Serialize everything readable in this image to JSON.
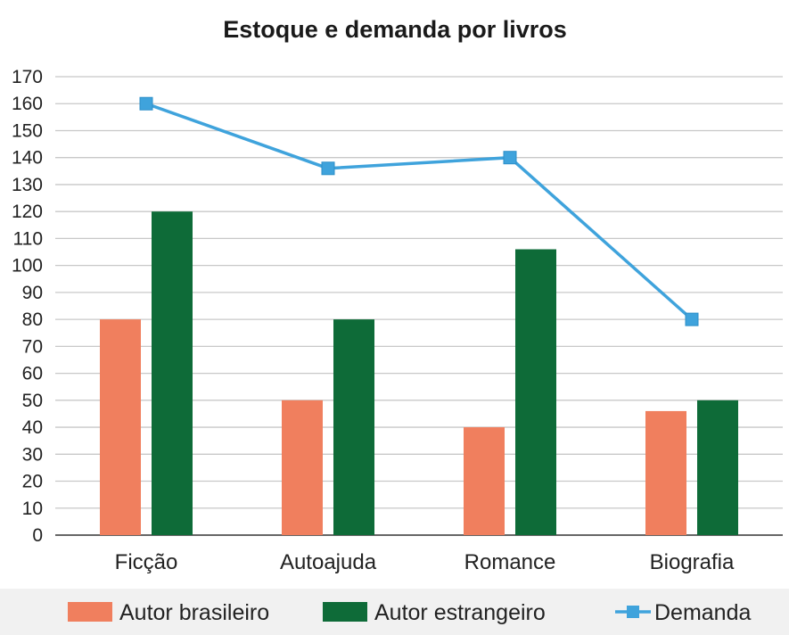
{
  "chart_data": {
    "type": "bar",
    "title": "Estoque e demanda por livros",
    "categories": [
      "Ficção",
      "Autoajuda",
      "Romance",
      "Biografia"
    ],
    "ylim": [
      0,
      170
    ],
    "yticks": [
      0,
      10,
      20,
      30,
      40,
      50,
      60,
      70,
      80,
      90,
      100,
      110,
      120,
      130,
      140,
      150,
      160,
      170
    ],
    "grid": true,
    "legend_position": "bottom",
    "series": [
      {
        "name": "Autor brasileiro",
        "type": "bar",
        "color": "#f07f5e",
        "values": [
          80,
          50,
          40,
          46
        ]
      },
      {
        "name": "Autor estrangeiro",
        "type": "bar",
        "color": "#0e6b38",
        "values": [
          120,
          80,
          106,
          50
        ]
      },
      {
        "name": "Demanda",
        "type": "line",
        "color": "#3fa3dc",
        "marker": "square",
        "values": [
          160,
          136,
          140,
          80
        ]
      }
    ]
  }
}
